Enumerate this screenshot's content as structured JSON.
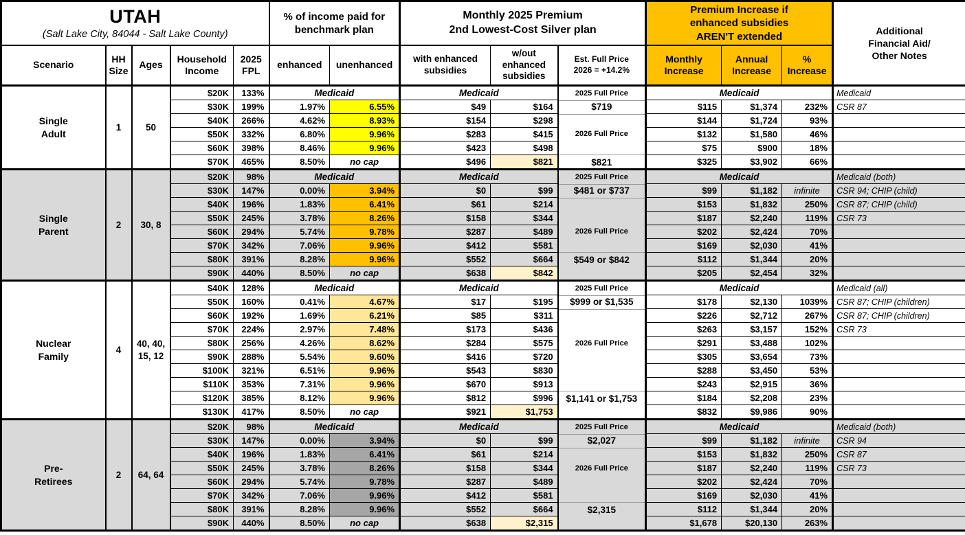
{
  "title": {
    "main": "UTAH",
    "subtitle": "(Salt Lake City, 84044 - Salt Lake County)"
  },
  "group_headers": {
    "benchmark": "% of income paid for benchmark plan",
    "premium_l1": "Monthly 2025 Premium",
    "premium_l2": "2nd Lowest-Cost Silver plan",
    "increase": "Premium Increase if enhanced subsidies AREN'T extended",
    "notes": "Additional Financial Aid/ Other Notes"
  },
  "columns": {
    "scenario": "Scenario",
    "hh_size": "HH Size",
    "ages": "Ages",
    "income": "Household Income",
    "fpl": "2025 FPL",
    "enhanced": "enhanced",
    "unenhanced": "unenhanced",
    "with_sub": "with enhanced subsidies",
    "wout_sub": "w/out enhanced subsidies",
    "est": "Est. Full Price 2026 = +14.2%",
    "monthly": "Monthly Increase",
    "annual": "Annual Increase",
    "pct": "% Increase"
  },
  "labels": {
    "medicaid": "Medicaid",
    "no_cap": "no cap",
    "infinite": "infinite"
  },
  "colors": {
    "orange_header": "#FFC000",
    "yellow_highlight": "#FFFF00",
    "orange_highlight": "#FFC000",
    "tan_highlight": "#FFE699",
    "gray_highlight": "#A6A6A6",
    "section_gray": "#D9D9D9",
    "cream": "#FFF2CC"
  },
  "sections": [
    {
      "scenario": "Single\nAdult",
      "hh": "1",
      "ages": "50",
      "bg": "#FFFFFF",
      "hl": "#FFFF00",
      "est_items": [
        {
          "row": 0,
          "text": "2025 Full Price",
          "style": "label",
          "line": "bottom"
        },
        {
          "row": 1,
          "text": "$719",
          "style": "price",
          "line": "bottom"
        },
        {
          "row": 3,
          "text": "2026 Full Price",
          "style": "label"
        },
        {
          "row": 5,
          "text": "$821",
          "style": "price",
          "line": "top"
        }
      ],
      "rows": [
        {
          "income": "$20K",
          "fpl": "133%",
          "medicaid": true,
          "notes": "Medicaid"
        },
        {
          "income": "$30K",
          "fpl": "199%",
          "enh": "1.97%",
          "unenh": "6.55%",
          "subs": "$49",
          "nosubs": "$164",
          "mon": "$115",
          "ann": "$1,374",
          "pct": "232%",
          "notes": "CSR 87"
        },
        {
          "income": "$40K",
          "fpl": "266%",
          "enh": "4.62%",
          "unenh": "8.93%",
          "subs": "$154",
          "nosubs": "$298",
          "mon": "$144",
          "ann": "$1,724",
          "pct": "93%"
        },
        {
          "income": "$50K",
          "fpl": "332%",
          "enh": "6.80%",
          "unenh": "9.96%",
          "subs": "$283",
          "nosubs": "$415",
          "mon": "$132",
          "ann": "$1,580",
          "pct": "46%"
        },
        {
          "income": "$60K",
          "fpl": "398%",
          "enh": "8.46%",
          "unenh": "9.96%",
          "subs": "$423",
          "nosubs": "$498",
          "mon": "$75",
          "ann": "$900",
          "pct": "18%"
        },
        {
          "income": "$70K",
          "fpl": "465%",
          "enh": "8.50%",
          "nocap": true,
          "subs": "$496",
          "nosubs": "$821",
          "nosubs_hl": true,
          "mon": "$325",
          "ann": "$3,902",
          "pct": "66%"
        }
      ]
    },
    {
      "scenario": "Single\nParent",
      "hh": "2",
      "ages": "30, 8",
      "bg": "#D9D9D9",
      "hl": "#FFC000",
      "est_items": [
        {
          "row": 0,
          "text": "2025 Full Price",
          "style": "label",
          "line": "bottom"
        },
        {
          "row": 1,
          "text": "$481 or $737",
          "style": "price",
          "line": "bottom"
        },
        {
          "row": 4,
          "text": "2026 Full Price",
          "style": "label"
        },
        {
          "row": 6,
          "text": "$549 or $842",
          "style": "price",
          "line": "top"
        }
      ],
      "rows": [
        {
          "income": "$20K",
          "fpl": "98%",
          "medicaid": true,
          "notes": "Medicaid (both)"
        },
        {
          "income": "$30K",
          "fpl": "147%",
          "enh": "0.00%",
          "unenh": "3.94%",
          "subs": "$0",
          "nosubs": "$99",
          "mon": "$99",
          "ann": "$1,182",
          "pct": "infinite",
          "notes": "CSR 94; CHIP (child)"
        },
        {
          "income": "$40K",
          "fpl": "196%",
          "enh": "1.83%",
          "unenh": "6.41%",
          "subs": "$61",
          "nosubs": "$214",
          "mon": "$153",
          "ann": "$1,832",
          "pct": "250%",
          "notes": "CSR 87; CHIP (child)"
        },
        {
          "income": "$50K",
          "fpl": "245%",
          "enh": "3.78%",
          "unenh": "8.26%",
          "subs": "$158",
          "nosubs": "$344",
          "mon": "$187",
          "ann": "$2,240",
          "pct": "119%",
          "notes": "CSR 73"
        },
        {
          "income": "$60K",
          "fpl": "294%",
          "enh": "5.74%",
          "unenh": "9.78%",
          "subs": "$287",
          "nosubs": "$489",
          "mon": "$202",
          "ann": "$2,424",
          "pct": "70%"
        },
        {
          "income": "$70K",
          "fpl": "342%",
          "enh": "7.06%",
          "unenh": "9.96%",
          "subs": "$412",
          "nosubs": "$581",
          "mon": "$169",
          "ann": "$2,030",
          "pct": "41%"
        },
        {
          "income": "$80K",
          "fpl": "391%",
          "enh": "8.28%",
          "unenh": "9.96%",
          "subs": "$552",
          "nosubs": "$664",
          "mon": "$112",
          "ann": "$1,344",
          "pct": "20%"
        },
        {
          "income": "$90K",
          "fpl": "440%",
          "enh": "8.50%",
          "nocap": true,
          "subs": "$638",
          "nosubs": "$842",
          "nosubs_hl": true,
          "mon": "$205",
          "ann": "$2,454",
          "pct": "32%"
        }
      ]
    },
    {
      "scenario": "Nuclear\nFamily",
      "hh": "4",
      "ages": "40, 40,\n15, 12",
      "bg": "#FFFFFF",
      "hl": "#FFE699",
      "est_items": [
        {
          "row": 0,
          "text": "2025 Full Price",
          "style": "label",
          "line": "bottom"
        },
        {
          "row": 1,
          "text": "$999 or $1,535",
          "style": "price",
          "line": "bottom"
        },
        {
          "row": 4,
          "text": "2026 Full Price",
          "style": "label"
        },
        {
          "row": 8,
          "text": "$1,141 or $1,753",
          "style": "price",
          "line": "top"
        }
      ],
      "rows": [
        {
          "income": "$40K",
          "fpl": "128%",
          "medicaid": true,
          "notes": "Medicaid (all)"
        },
        {
          "income": "$50K",
          "fpl": "160%",
          "enh": "0.41%",
          "unenh": "4.67%",
          "subs": "$17",
          "nosubs": "$195",
          "mon": "$178",
          "ann": "$2,130",
          "pct": "1039%",
          "notes": "CSR 87; CHIP (children)"
        },
        {
          "income": "$60K",
          "fpl": "192%",
          "enh": "1.69%",
          "unenh": "6.21%",
          "subs": "$85",
          "nosubs": "$311",
          "mon": "$226",
          "ann": "$2,712",
          "pct": "267%",
          "notes": "CSR 87; CHIP (children)"
        },
        {
          "income": "$70K",
          "fpl": "224%",
          "enh": "2.97%",
          "unenh": "7.48%",
          "subs": "$173",
          "nosubs": "$436",
          "mon": "$263",
          "ann": "$3,157",
          "pct": "152%",
          "notes": "CSR 73"
        },
        {
          "income": "$80K",
          "fpl": "256%",
          "enh": "4.26%",
          "unenh": "8.62%",
          "subs": "$284",
          "nosubs": "$575",
          "mon": "$291",
          "ann": "$3,488",
          "pct": "102%"
        },
        {
          "income": "$90K",
          "fpl": "288%",
          "enh": "5.54%",
          "unenh": "9.60%",
          "subs": "$416",
          "nosubs": "$720",
          "mon": "$305",
          "ann": "$3,654",
          "pct": "73%"
        },
        {
          "income": "$100K",
          "fpl": "321%",
          "enh": "6.51%",
          "unenh": "9.96%",
          "subs": "$543",
          "nosubs": "$830",
          "mon": "$288",
          "ann": "$3,450",
          "pct": "53%"
        },
        {
          "income": "$110K",
          "fpl": "353%",
          "enh": "7.31%",
          "unenh": "9.96%",
          "subs": "$670",
          "nosubs": "$913",
          "mon": "$243",
          "ann": "$2,915",
          "pct": "36%"
        },
        {
          "income": "$120K",
          "fpl": "385%",
          "enh": "8.12%",
          "unenh": "9.96%",
          "subs": "$812",
          "nosubs": "$996",
          "mon": "$184",
          "ann": "$2,208",
          "pct": "23%"
        },
        {
          "income": "$130K",
          "fpl": "417%",
          "enh": "8.50%",
          "nocap": true,
          "subs": "$921",
          "nosubs": "$1,753",
          "nosubs_hl": true,
          "mon": "$832",
          "ann": "$9,986",
          "pct": "90%"
        }
      ]
    },
    {
      "scenario": "Pre-\nRetirees",
      "hh": "2",
      "ages": "64, 64",
      "bg": "#D9D9D9",
      "hl": "#A6A6A6",
      "est_items": [
        {
          "row": 0,
          "text": "2025 Full Price",
          "style": "label",
          "line": "bottom"
        },
        {
          "row": 1,
          "text": "$2,027",
          "style": "price",
          "line": "bottom"
        },
        {
          "row": 3,
          "text": "2026 Full Price",
          "style": "label"
        },
        {
          "row": 6,
          "text": "$2,315",
          "style": "price",
          "line": "top"
        }
      ],
      "rows": [
        {
          "income": "$20K",
          "fpl": "98%",
          "medicaid": true,
          "notes": "Medicaid (both)"
        },
        {
          "income": "$30K",
          "fpl": "147%",
          "enh": "0.00%",
          "unenh": "3.94%",
          "subs": "$0",
          "nosubs": "$99",
          "mon": "$99",
          "ann": "$1,182",
          "pct": "infinite",
          "notes": "CSR 94"
        },
        {
          "income": "$40K",
          "fpl": "196%",
          "enh": "1.83%",
          "unenh": "6.41%",
          "subs": "$61",
          "nosubs": "$214",
          "mon": "$153",
          "ann": "$1,832",
          "pct": "250%",
          "notes": "CSR 87"
        },
        {
          "income": "$50K",
          "fpl": "245%",
          "enh": "3.78%",
          "unenh": "8.26%",
          "subs": "$158",
          "nosubs": "$344",
          "mon": "$187",
          "ann": "$2,240",
          "pct": "119%",
          "notes": "CSR 73"
        },
        {
          "income": "$60K",
          "fpl": "294%",
          "enh": "5.74%",
          "unenh": "9.78%",
          "subs": "$287",
          "nosubs": "$489",
          "mon": "$202",
          "ann": "$2,424",
          "pct": "70%"
        },
        {
          "income": "$70K",
          "fpl": "342%",
          "enh": "7.06%",
          "unenh": "9.96%",
          "subs": "$412",
          "nosubs": "$581",
          "mon": "$169",
          "ann": "$2,030",
          "pct": "41%"
        },
        {
          "income": "$80K",
          "fpl": "391%",
          "enh": "8.28%",
          "unenh": "9.96%",
          "subs": "$552",
          "nosubs": "$664",
          "mon": "$112",
          "ann": "$1,344",
          "pct": "20%"
        },
        {
          "income": "$90K",
          "fpl": "440%",
          "enh": "8.50%",
          "nocap": true,
          "subs": "$638",
          "nosubs": "$2,315",
          "nosubs_hl": true,
          "mon": "$1,678",
          "ann": "$20,130",
          "pct": "263%"
        }
      ]
    }
  ]
}
